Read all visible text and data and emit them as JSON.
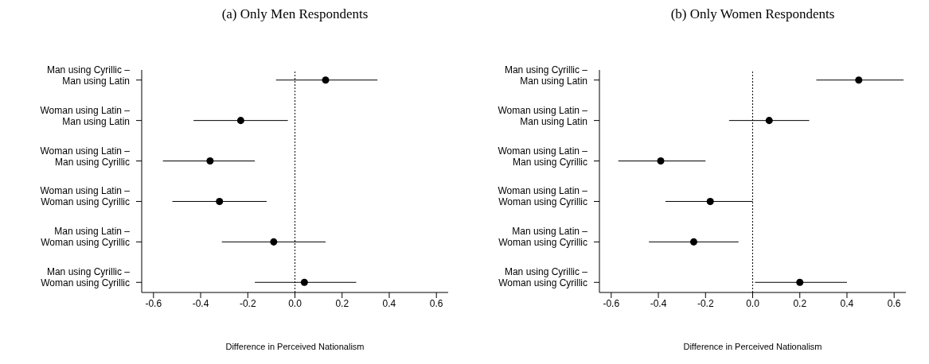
{
  "chart_data": [
    {
      "type": "scatter",
      "title": "(a) Only Men Respondents",
      "xlabel": "Difference in Perceived Nationalism",
      "orientation": "horizontal",
      "marker": "circle",
      "color": "#000000",
      "categories": [
        "Man using Cyrillic –\nMan using Latin",
        "Woman using Latin –\nMan using Latin",
        "Woman using Latin –\nMan using Cyrillic",
        "Woman using Latin –\nWoman using Cyrillic",
        "Man using Latin –\nWoman using Cyrillic",
        "Man using Cyrillic –\nWoman using Cyrillic"
      ],
      "values": [
        0.13,
        -0.23,
        -0.36,
        -0.32,
        -0.09,
        0.04
      ],
      "errors": [
        [
          -0.08,
          0.35
        ],
        [
          -0.43,
          -0.03
        ],
        [
          -0.56,
          -0.17
        ],
        [
          -0.52,
          -0.12
        ],
        [
          -0.31,
          0.13
        ],
        [
          -0.17,
          0.26
        ]
      ],
      "xlim": [
        -0.65,
        0.65
      ],
      "xticks": [
        -0.6,
        -0.4,
        -0.2,
        {
          "value": 0,
          "label": "0.0"
        },
        0.2,
        0.4,
        0.6
      ],
      "ref_lines": [
        {
          "axis": "x",
          "value": 0,
          "line_style": "dotted",
          "color": "#000000"
        }
      ]
    },
    {
      "type": "scatter",
      "title": "(b) Only Women Respondents",
      "xlabel": "Difference in Perceived Nationalism",
      "orientation": "horizontal",
      "marker": "circle",
      "color": "#000000",
      "categories": [
        "Man using Cyrillic –\nMan using Latin",
        "Woman using Latin –\nMan using Latin",
        "Woman using Latin –\nMan using Cyrillic",
        "Woman using Latin –\nWoman using Cyrillic",
        "Man using Latin –\nWoman using Cyrillic",
        "Man using Cyrillic –\nWoman using Cyrillic"
      ],
      "values": [
        0.45,
        0.07,
        -0.39,
        -0.18,
        -0.25,
        0.2
      ],
      "errors": [
        [
          0.27,
          0.64
        ],
        [
          -0.1,
          0.24
        ],
        [
          -0.57,
          -0.2
        ],
        [
          -0.37,
          0
        ],
        [
          -0.44,
          -0.06
        ],
        [
          0.01,
          0.4
        ]
      ],
      "xlim": [
        -0.65,
        0.65
      ],
      "xticks": [
        -0.6,
        -0.4,
        -0.2,
        {
          "value": 0,
          "label": "0.0"
        },
        0.2,
        0.4,
        0.6
      ],
      "ref_lines": [
        {
          "axis": "x",
          "value": 0,
          "line_style": "dotted",
          "color": "#000000"
        }
      ]
    }
  ]
}
